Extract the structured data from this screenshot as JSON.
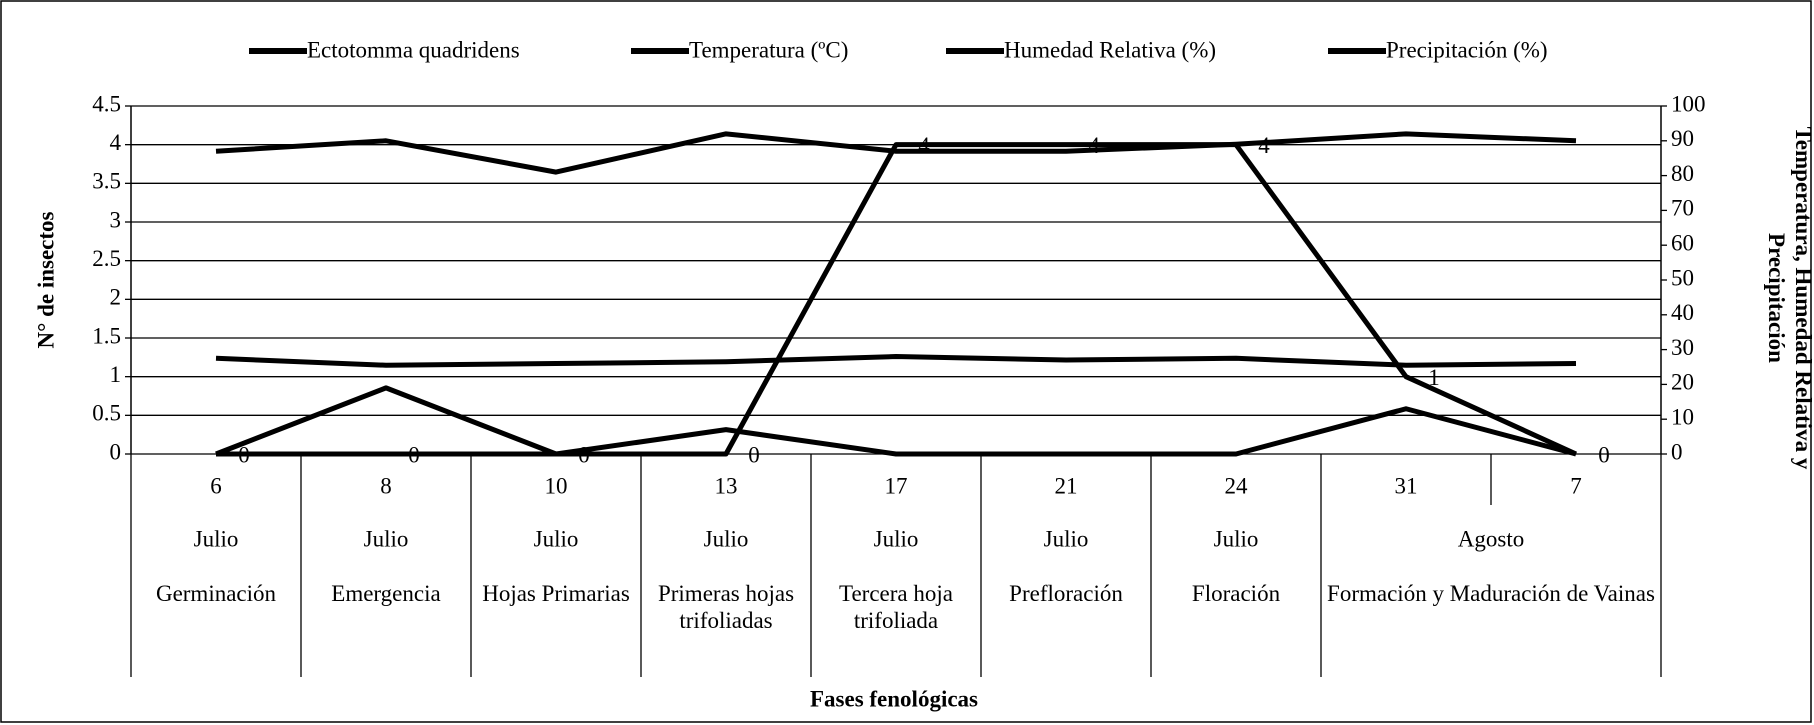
{
  "chart_data": {
    "type": "line",
    "xlabel": "Fases fenológicas",
    "ylabel": "N° de insectos",
    "y2label": "Temperatura, Humedad Relativa y Precipitación",
    "categories": [
      "6",
      "8",
      "10",
      "13",
      "17",
      "21",
      "24",
      "31",
      "7"
    ],
    "months": [
      "Julio",
      "Julio",
      "Julio",
      "Julio",
      "Julio",
      "Julio",
      "Julio",
      "Agosto",
      null
    ],
    "phases": [
      "Germinación",
      "Emergencia",
      "Hojas Primarias",
      "Primeras hojas trifoliadas",
      "Tercera hoja trifoliada",
      "Prefloración",
      "Floración",
      "Formación y Maduración de Vainas",
      null
    ],
    "series": [
      {
        "name": "Ectotomma quadridens",
        "color": "#000000",
        "values": [
          0,
          0,
          0,
          0,
          4,
          4,
          4,
          1,
          0
        ],
        "data_labels": true
      },
      {
        "name": "Temperatura (ºC)",
        "color": "#000000",
        "axis": "y2",
        "values": [
          27.5,
          25.5,
          26,
          26.5,
          28,
          27,
          27.5,
          25.5,
          26
        ]
      },
      {
        "name": "Humedad Relativa (%)",
        "color": "#000000",
        "axis": "y2",
        "values": [
          87,
          90,
          81,
          92,
          87,
          87,
          89,
          92,
          90
        ]
      },
      {
        "name": "Precipitación (%)",
        "color": "#000000",
        "axis": "y2",
        "values": [
          0,
          19,
          0,
          7,
          0,
          0,
          0,
          13,
          0
        ]
      }
    ],
    "ylim": [
      0,
      4.5
    ],
    "yticks": [
      0,
      0.5,
      1,
      1.5,
      2,
      2.5,
      3,
      3.5,
      4,
      4.5
    ],
    "y2lim": [
      0,
      100
    ],
    "y2ticks": [
      0,
      10,
      20,
      30,
      40,
      50,
      60,
      70,
      80,
      90,
      100
    ],
    "grid": true,
    "legend": "top"
  }
}
